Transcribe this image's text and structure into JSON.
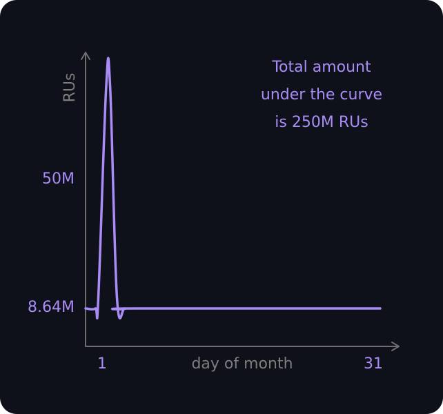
{
  "colors": {
    "background": "#0e111a",
    "accent": "#a98cf5",
    "axis": "#6f6f6f",
    "axis_label": "#7d7d7d"
  },
  "chart_data": {
    "type": "line",
    "xlabel": "day of month",
    "ylabel": "RUs",
    "x_ticks": [
      "1",
      "31"
    ],
    "y_ticks": [
      "8.64M",
      "50M"
    ],
    "annotation_lines": [
      "Total amount",
      "under the curve",
      "is 250M RUs"
    ],
    "xlim": [
      1,
      31
    ],
    "x": [
      1,
      2,
      2.3,
      3.1,
      3.5,
      4.2,
      5,
      6,
      31
    ],
    "y": [
      8.64,
      8.64,
      12,
      79,
      79,
      12,
      8.64,
      8.64,
      8.64
    ],
    "grid": false,
    "legend": "none"
  }
}
